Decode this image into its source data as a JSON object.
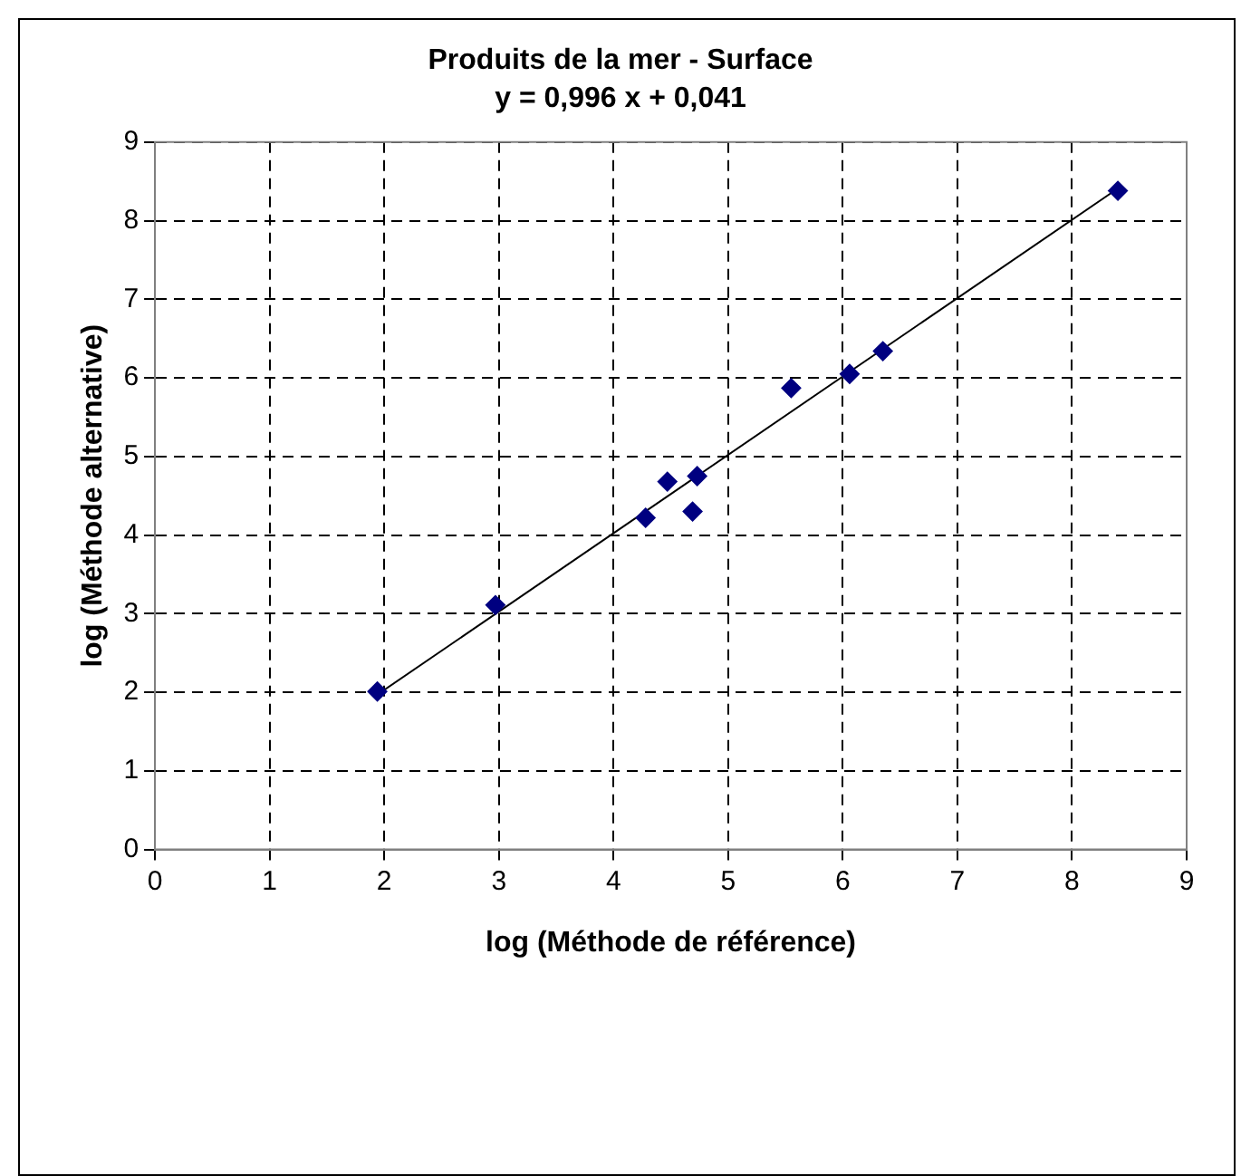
{
  "chart_data": {
    "type": "scatter",
    "title": "Produits de la mer - Surface",
    "subtitle": "y = 0,996 x + 0,041",
    "xlabel": "log (Méthode de référence)",
    "ylabel": "log (Méthode alternative)",
    "xlim": [
      0,
      9
    ],
    "xticks": [
      0,
      1,
      2,
      3,
      4,
      5,
      6,
      7,
      8,
      9
    ],
    "ylim": [
      0,
      9
    ],
    "yticks": [
      0,
      1,
      2,
      3,
      4,
      5,
      6,
      7,
      8,
      9
    ],
    "grid": true,
    "legend": false,
    "marker": "diamond",
    "series": [
      {
        "color": "#000080",
        "x": [
          1.94,
          2.97,
          4.28,
          4.47,
          4.73,
          4.69,
          5.55,
          6.06,
          6.35,
          8.4
        ],
        "values": [
          2.01,
          3.11,
          4.22,
          4.68,
          4.75,
          4.3,
          5.87,
          6.05,
          6.34,
          8.38
        ]
      },
      {
        "type": "line",
        "color": "#000000",
        "marker": "none",
        "x": [
          1.94,
          8.4
        ],
        "values": [
          1.97,
          8.41
        ]
      }
    ]
  }
}
